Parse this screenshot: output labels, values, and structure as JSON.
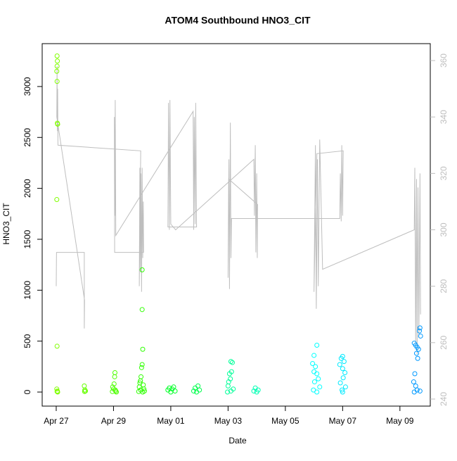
{
  "chart_data": {
    "type": "scatter",
    "title": "ATOM4 Southbound HNO3_CIT",
    "x_label": "Date",
    "y_label": "HNO3_CIT",
    "xlim": [
      -0.49,
      13.06
    ],
    "xticks": [
      {
        "value": 0,
        "label": "Apr 27"
      },
      {
        "value": 2,
        "label": "Apr 29"
      },
      {
        "value": 4,
        "label": "May 01"
      },
      {
        "value": 6,
        "label": "May 03"
      },
      {
        "value": 8,
        "label": "May 05"
      },
      {
        "value": 10,
        "label": "May 07"
      },
      {
        "value": 12,
        "label": "May 09"
      }
    ],
    "ylim": [
      -138,
      3421
    ],
    "yticks": [
      0,
      500,
      1000,
      1500,
      2000,
      2500,
      3000
    ],
    "y2lim": [
      237.5,
      366
    ],
    "y2ticks": [
      240,
      260,
      280,
      300,
      320,
      340,
      360
    ],
    "y2_color": "#bebebe",
    "series": [
      {
        "color": "#80ff00",
        "x": [
          0.03,
          0.04,
          0.03,
          0.02,
          0.03,
          0.04,
          0.05,
          0.02,
          0.03,
          0.02,
          0.04,
          0.05,
          0.03
        ],
        "values": [
          3300,
          3250,
          3200,
          3150,
          3050,
          2640,
          2630,
          1890,
          450,
          30,
          10,
          0,
          5
        ]
      },
      {
        "color": "#66ff00",
        "x": [
          0.98,
          1.0,
          1.02,
          0.99
        ],
        "values": [
          60,
          20,
          10,
          5
        ]
      },
      {
        "color": "#4dff00",
        "x": [
          2.05,
          2.04,
          2.02,
          1.97,
          2.0,
          2.06,
          2.08,
          1.96,
          2.1
        ],
        "values": [
          190,
          150,
          80,
          50,
          30,
          20,
          10,
          5,
          0
        ]
      },
      {
        "color": "#2eff00",
        "x": [
          3.0,
          3.0,
          3.02,
          3.0,
          2.98,
          2.96,
          2.94,
          2.92,
          3.04,
          2.9,
          3.06,
          2.95,
          3.08,
          2.88,
          3.02
        ],
        "values": [
          1200,
          810,
          420,
          270,
          240,
          150,
          110,
          90,
          70,
          50,
          30,
          20,
          10,
          5,
          0
        ]
      },
      {
        "color": "#00ff26",
        "x": [
          4.1,
          3.95,
          4.05,
          3.9,
          4.15,
          4.0
        ],
        "values": [
          50,
          40,
          30,
          20,
          10,
          0
        ]
      },
      {
        "color": "#00ff4d",
        "x": [
          4.95,
          4.85,
          5.0,
          4.8,
          4.9
        ],
        "values": [
          60,
          40,
          20,
          10,
          0
        ]
      },
      {
        "color": "#00ff99",
        "x": [
          6.1,
          6.15,
          6.12,
          6.05,
          6.08,
          6.02,
          6.0,
          6.18,
          6.1,
          5.98
        ],
        "values": [
          300,
          290,
          200,
          180,
          130,
          100,
          60,
          30,
          10,
          0
        ]
      },
      {
        "color": "#00ffb3",
        "x": [
          6.95,
          7.05,
          6.9,
          7.0
        ],
        "values": [
          40,
          20,
          10,
          0
        ]
      },
      {
        "color": "#00ffff",
        "x": [
          9.1,
          9.0,
          8.95,
          9.05,
          9.0,
          9.1,
          9.15,
          9.02,
          9.2,
          8.98,
          9.1
        ],
        "values": [
          460,
          360,
          280,
          250,
          200,
          180,
          130,
          100,
          50,
          20,
          0
        ]
      },
      {
        "color": "#00eaff",
        "x": [
          10.0,
          9.95,
          10.05,
          9.9,
          10.0,
          10.08,
          10.02,
          9.92,
          10.1,
          9.98,
          10.0
        ],
        "values": [
          350,
          330,
          300,
          270,
          230,
          190,
          140,
          90,
          50,
          20,
          0
        ]
      },
      {
        "color": "#0099ff",
        "x": [
          12.7,
          12.68,
          12.72,
          12.5,
          12.55,
          12.6,
          12.65,
          12.58,
          12.62,
          12.52,
          12.48,
          12.55,
          12.6,
          12.7,
          12.5
        ],
        "values": [
          630,
          600,
          550,
          480,
          460,
          440,
          420,
          380,
          330,
          180,
          100,
          60,
          20,
          10,
          0
        ]
      },
      {
        "axis": "y2",
        "color": "#bebebe",
        "x": [
          0,
          0.01,
          0.98,
          0.98,
          0.99,
          0.02,
          0.03,
          0.04,
          0.05,
          0.06,
          2.95,
          2.9,
          2.92,
          2.94,
          2.96,
          2.98,
          3.0,
          3.02,
          3.04,
          3.05,
          2.04,
          2.03,
          2.05,
          2.06,
          2.08,
          4.78,
          4.8,
          4.82,
          4.85,
          4.87,
          4.9,
          3.9,
          3.92,
          3.95,
          3.97,
          4.0,
          4.17,
          6.9,
          6.92,
          6.95,
          6.97,
          7.0,
          7.02,
          7.03,
          6.02,
          6.0,
          6.03,
          6.05,
          6.08,
          6.1,
          6.12,
          9.9,
          9.92,
          9.95,
          9.97,
          10.0,
          10.02,
          9.1,
          9.0,
          9.05,
          9.08,
          9.12,
          9.15,
          9.2,
          9.3,
          12.5,
          12.52,
          12.55,
          12.58,
          12.6,
          12.63,
          12.66,
          12.7,
          12.72
        ],
        "values": [
          280,
          292,
          292,
          265,
          275,
          340,
          358,
          335,
          350,
          330,
          328,
          280,
          322,
          285,
          320,
          278,
          322,
          290,
          310,
          292,
          292,
          340,
          305,
          346,
          298,
          342,
          300,
          340,
          302,
          345,
          301,
          301,
          345,
          300,
          346,
          302,
          300,
          325,
          305,
          330,
          292,
          320,
          290,
          309,
          318,
          283,
          325,
          279,
          338,
          290,
          304,
          304,
          320,
          303,
          330,
          305,
          328,
          327,
          278,
          330,
          272,
          325,
          280,
          332,
          286,
          300,
          322,
          260,
          318,
          256,
          315,
          262,
          320,
          270
        ]
      }
    ]
  }
}
